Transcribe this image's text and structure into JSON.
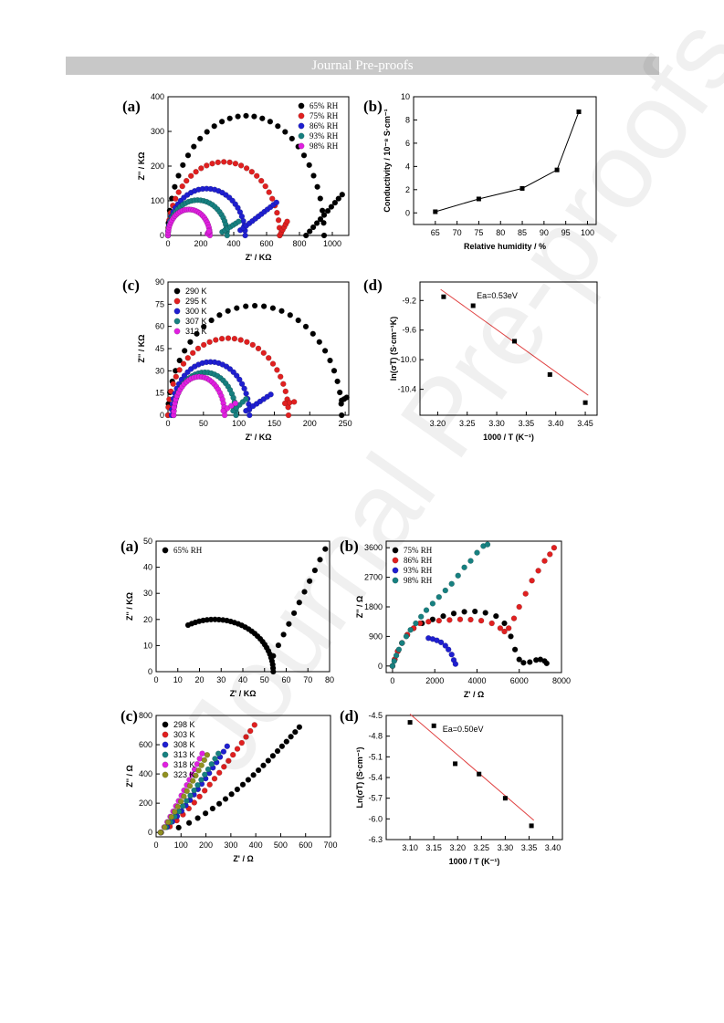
{
  "header": {
    "text": "Journal Pre-proofs"
  },
  "watermark": {
    "text": "Journal Pre-proofs"
  },
  "chart_data": [
    {
      "panel": "(a)",
      "type": "scatter",
      "xlabel": "Z' / KΩ",
      "ylabel": "Z'' / KΩ",
      "xlim": [
        0,
        1100
      ],
      "ylim": [
        0,
        400
      ],
      "xticks": [
        0,
        200,
        400,
        600,
        800,
        1000
      ],
      "yticks": [
        0,
        100,
        200,
        300,
        400
      ],
      "legend_position": "top-right",
      "series": [
        {
          "name": "65% RH",
          "color": "#000000",
          "arc": [
            0,
            950,
            345
          ],
          "tail": [
            [
              840,
              0
            ],
            [
              1060,
              118
            ]
          ],
          "tail_n": 10
        },
        {
          "name": "75% RH",
          "color": "#e02020",
          "arc": [
            0,
            680,
            212
          ],
          "tail": [
            [
              680,
              0
            ],
            [
              725,
              40
            ]
          ],
          "tail_n": 5
        },
        {
          "name": "86% RH",
          "color": "#1f1fd0",
          "arc": [
            0,
            470,
            135
          ],
          "tail": [
            [
              440,
              15
            ],
            [
              660,
              95
            ]
          ],
          "tail_n": 12
        },
        {
          "name": "93% RH",
          "color": "#178080",
          "arc": [
            0,
            360,
            102
          ],
          "tail": [
            [
              330,
              10
            ],
            [
              430,
              40
            ]
          ],
          "tail_n": 6
        },
        {
          "name": "98% RH",
          "color": "#e020e0",
          "arc": [
            0,
            255,
            75
          ],
          "tail": [
            [
              240,
              5
            ],
            [
              250,
              12
            ]
          ],
          "tail_n": 2
        }
      ]
    },
    {
      "panel": "(b)",
      "type": "line",
      "xlabel": "Relative humidity / %",
      "ylabel": "Conductivity / 10⁻⁸ S·cm⁻¹",
      "xlim": [
        60,
        102
      ],
      "ylim": [
        -1,
        10
      ],
      "xticks": [
        65,
        70,
        75,
        80,
        85,
        90,
        95,
        100
      ],
      "yticks": [
        0,
        2,
        4,
        6,
        8,
        10
      ],
      "x": [
        65,
        75,
        85,
        93,
        98
      ],
      "y": [
        0.1,
        1.2,
        2.1,
        3.7,
        8.7
      ]
    },
    {
      "panel": "(c)",
      "type": "scatter",
      "xlabel": "Z' / KΩ",
      "ylabel": "Z'' / KΩ",
      "xlim": [
        0,
        255
      ],
      "ylim": [
        0,
        90
      ],
      "xticks": [
        0,
        50,
        100,
        150,
        200,
        250
      ],
      "yticks": [
        0,
        15,
        30,
        45,
        60,
        75,
        90
      ],
      "legend_position": "top-left",
      "series": [
        {
          "name": "290 K",
          "color": "#000000",
          "arc": [
            0,
            245,
            74
          ],
          "tail": [
            [
              245,
              10
            ],
            [
              252,
              12
            ]
          ],
          "tail_n": 2
        },
        {
          "name": "295 K",
          "color": "#e02020",
          "arc": [
            0,
            170,
            52
          ],
          "tail": [
            [
              165,
              8
            ],
            [
              178,
              9
            ]
          ],
          "tail_n": 2
        },
        {
          "name": "300 K",
          "color": "#1f1fd0",
          "arc": [
            5,
            115,
            36
          ],
          "tail": [
            [
              110,
              3
            ],
            [
              145,
              14
            ]
          ],
          "tail_n": 7
        },
        {
          "name": "307 K",
          "color": "#178080",
          "arc": [
            8,
            96,
            29
          ],
          "tail": [
            [
              92,
              3
            ],
            [
              110,
              11
            ]
          ],
          "tail_n": 4
        },
        {
          "name": "312 K",
          "color": "#e020e0",
          "arc": [
            8,
            80,
            26
          ],
          "tail": [
            [
              78,
              3
            ],
            [
              95,
              8
            ]
          ],
          "tail_n": 3
        }
      ]
    },
    {
      "panel": "(d)",
      "type": "scatter",
      "xlabel": "1000 / T (K⁻¹)",
      "ylabel": "ln(σT) (S·cm⁻¹K)",
      "xlim": [
        3.17,
        3.47
      ],
      "ylim": [
        -10.75,
        -8.95
      ],
      "xticks": [
        3.2,
        3.25,
        3.3,
        3.35,
        3.4,
        3.45
      ],
      "yticks": [
        -10.4,
        -10.0,
        -9.6,
        -9.2
      ],
      "annotation": "Ea=0.53eV",
      "x": [
        3.21,
        3.26,
        3.33,
        3.39,
        3.45
      ],
      "y": [
        -9.15,
        -9.27,
        -9.75,
        -10.2,
        -10.58
      ],
      "fit": [
        [
          3.205,
          -9.05
        ],
        [
          3.455,
          -10.48
        ]
      ]
    },
    {
      "panel": "(a)",
      "type": "scatter",
      "xlabel": "Z' / KΩ",
      "ylabel": "Z'' / KΩ",
      "xlim": [
        0,
        80
      ],
      "ylim": [
        0,
        50
      ],
      "xticks": [
        0,
        10,
        20,
        30,
        40,
        50,
        60,
        70,
        80
      ],
      "yticks": [
        0,
        10,
        20,
        30,
        40,
        50
      ],
      "legend_position": "top-left",
      "series": [
        {
          "name": "65% RH",
          "color": "#000000",
          "arc": [
            0,
            54,
            20
          ],
          "arc_start": 0.35,
          "tail": [
            [
              54,
              6
            ],
            [
              78,
              47
            ]
          ],
          "tail_n": 10
        }
      ]
    },
    {
      "panel": "(b)",
      "type": "scatter",
      "xlabel": "Z' / Ω",
      "ylabel": "Z'' / Ω",
      "xlim": [
        -300,
        8000
      ],
      "ylim": [
        -200,
        3800
      ],
      "xticks": [
        0,
        2000,
        4000,
        6000,
        8000
      ],
      "yticks": [
        0,
        900,
        1800,
        2700,
        3600
      ],
      "legend_position": "top-left",
      "series": [
        {
          "name": "75% RH",
          "color": "#000000",
          "pts": [
            [
              0,
              0
            ],
            [
              100,
              200
            ],
            [
              250,
              450
            ],
            [
              450,
              700
            ],
            [
              700,
              950
            ],
            [
              1000,
              1150
            ],
            [
              1400,
              1300
            ],
            [
              1900,
              1420
            ],
            [
              2400,
              1520
            ],
            [
              2900,
              1600
            ],
            [
              3400,
              1650
            ],
            [
              3900,
              1660
            ],
            [
              4400,
              1620
            ],
            [
              4900,
              1520
            ],
            [
              5300,
              1300
            ],
            [
              5600,
              900
            ],
            [
              5800,
              500
            ],
            [
              6000,
              200
            ],
            [
              6200,
              100
            ],
            [
              6500,
              120
            ],
            [
              6800,
              180
            ],
            [
              7000,
              200
            ],
            [
              7200,
              150
            ],
            [
              7300,
              80
            ]
          ]
        },
        {
          "name": "86% RH",
          "color": "#e02020",
          "pts": [
            [
              0,
              0
            ],
            [
              100,
              200
            ],
            [
              250,
              450
            ],
            [
              450,
              700
            ],
            [
              700,
              950
            ],
            [
              1000,
              1150
            ],
            [
              1300,
              1300
            ],
            [
              1700,
              1350
            ],
            [
              2200,
              1380
            ],
            [
              2700,
              1400
            ],
            [
              3200,
              1420
            ],
            [
              3700,
              1410
            ],
            [
              4200,
              1380
            ],
            [
              4700,
              1300
            ],
            [
              5100,
              1150
            ],
            [
              5300,
              1050
            ],
            [
              5500,
              1150
            ],
            [
              5750,
              1450
            ],
            [
              6000,
              1800
            ],
            [
              6300,
              2200
            ],
            [
              6600,
              2600
            ],
            [
              6900,
              2900
            ],
            [
              7200,
              3200
            ],
            [
              7450,
              3400
            ],
            [
              7650,
              3600
            ]
          ]
        },
        {
          "name": "93% RH",
          "color": "#1f1fd0",
          "pts": [
            [
              1700,
              850
            ],
            [
              1900,
              820
            ],
            [
              2100,
              780
            ],
            [
              2300,
              720
            ],
            [
              2500,
              620
            ],
            [
              2650,
              500
            ],
            [
              2800,
              350
            ],
            [
              2900,
              180
            ],
            [
              2980,
              60
            ]
          ]
        },
        {
          "name": "98% RH",
          "color": "#178080",
          "pts": [
            [
              0,
              0
            ],
            [
              80,
              150
            ],
            [
              180,
              320
            ],
            [
              300,
              500
            ],
            [
              450,
              700
            ],
            [
              650,
              900
            ],
            [
              850,
              1100
            ],
            [
              1100,
              1300
            ],
            [
              1350,
              1500
            ],
            [
              1600,
              1700
            ],
            [
              1900,
              1900
            ],
            [
              2200,
              2100
            ],
            [
              2500,
              2300
            ],
            [
              2800,
              2500
            ],
            [
              3100,
              2750
            ],
            [
              3400,
              3000
            ],
            [
              3700,
              3200
            ],
            [
              4000,
              3450
            ],
            [
              4300,
              3650
            ],
            [
              4500,
              3700
            ]
          ]
        }
      ]
    },
    {
      "panel": "(c)",
      "type": "scatter",
      "xlabel": "Z' / Ω",
      "ylabel": "Z'' / Ω",
      "xlim": [
        0,
        700
      ],
      "ylim": [
        -30,
        800
      ],
      "xticks": [
        0,
        100,
        200,
        300,
        400,
        500,
        600,
        700
      ],
      "yticks": [
        0,
        200,
        400,
        600,
        800
      ],
      "legend_position": "top-left",
      "series": [
        {
          "name": "298 K",
          "color": "#000000",
          "line": [
            [
              20,
              0
            ],
            [
              575,
              720
            ]
          ],
          "curve": 1.5,
          "n": 22
        },
        {
          "name": "303 K",
          "color": "#e02020",
          "line": [
            [
              18,
              0
            ],
            [
              395,
              735
            ]
          ],
          "curve": 1.25,
          "n": 18
        },
        {
          "name": "308 K",
          "color": "#1f1fd0",
          "line": [
            [
              18,
              0
            ],
            [
              285,
              590
            ]
          ],
          "curve": 1.2,
          "n": 16
        },
        {
          "name": "313 K",
          "color": "#178080",
          "line": [
            [
              18,
              0
            ],
            [
              250,
              540
            ]
          ],
          "curve": 1.15,
          "n": 15
        },
        {
          "name": "318 K",
          "color": "#e020e0",
          "line": [
            [
              18,
              0
            ],
            [
              185,
              540
            ]
          ],
          "curve": 1.1,
          "n": 15
        },
        {
          "name": "323 K",
          "color": "#909020",
          "line": [
            [
              18,
              0
            ],
            [
              205,
              530
            ]
          ],
          "curve": 1.1,
          "n": 15
        }
      ]
    },
    {
      "panel": "(d)",
      "type": "scatter",
      "xlabel": "1000 / T (K⁻¹)",
      "ylabel": "Ln(σT) (S·cm⁻¹)",
      "xlim": [
        3.05,
        3.42
      ],
      "ylim": [
        -6.3,
        -4.5
      ],
      "xticks": [
        3.1,
        3.15,
        3.2,
        3.25,
        3.3,
        3.35,
        3.4
      ],
      "yticks": [
        -6.3,
        -6.0,
        -5.7,
        -5.4,
        -5.1,
        -4.8,
        -4.5
      ],
      "annotation": "Ea=0.50eV",
      "x": [
        3.1,
        3.15,
        3.195,
        3.245,
        3.3,
        3.355
      ],
      "y": [
        -4.6,
        -4.65,
        -5.2,
        -5.35,
        -5.7,
        -6.1
      ],
      "fit": [
        [
          3.1,
          -4.48
        ],
        [
          3.36,
          -6.02
        ]
      ]
    }
  ]
}
